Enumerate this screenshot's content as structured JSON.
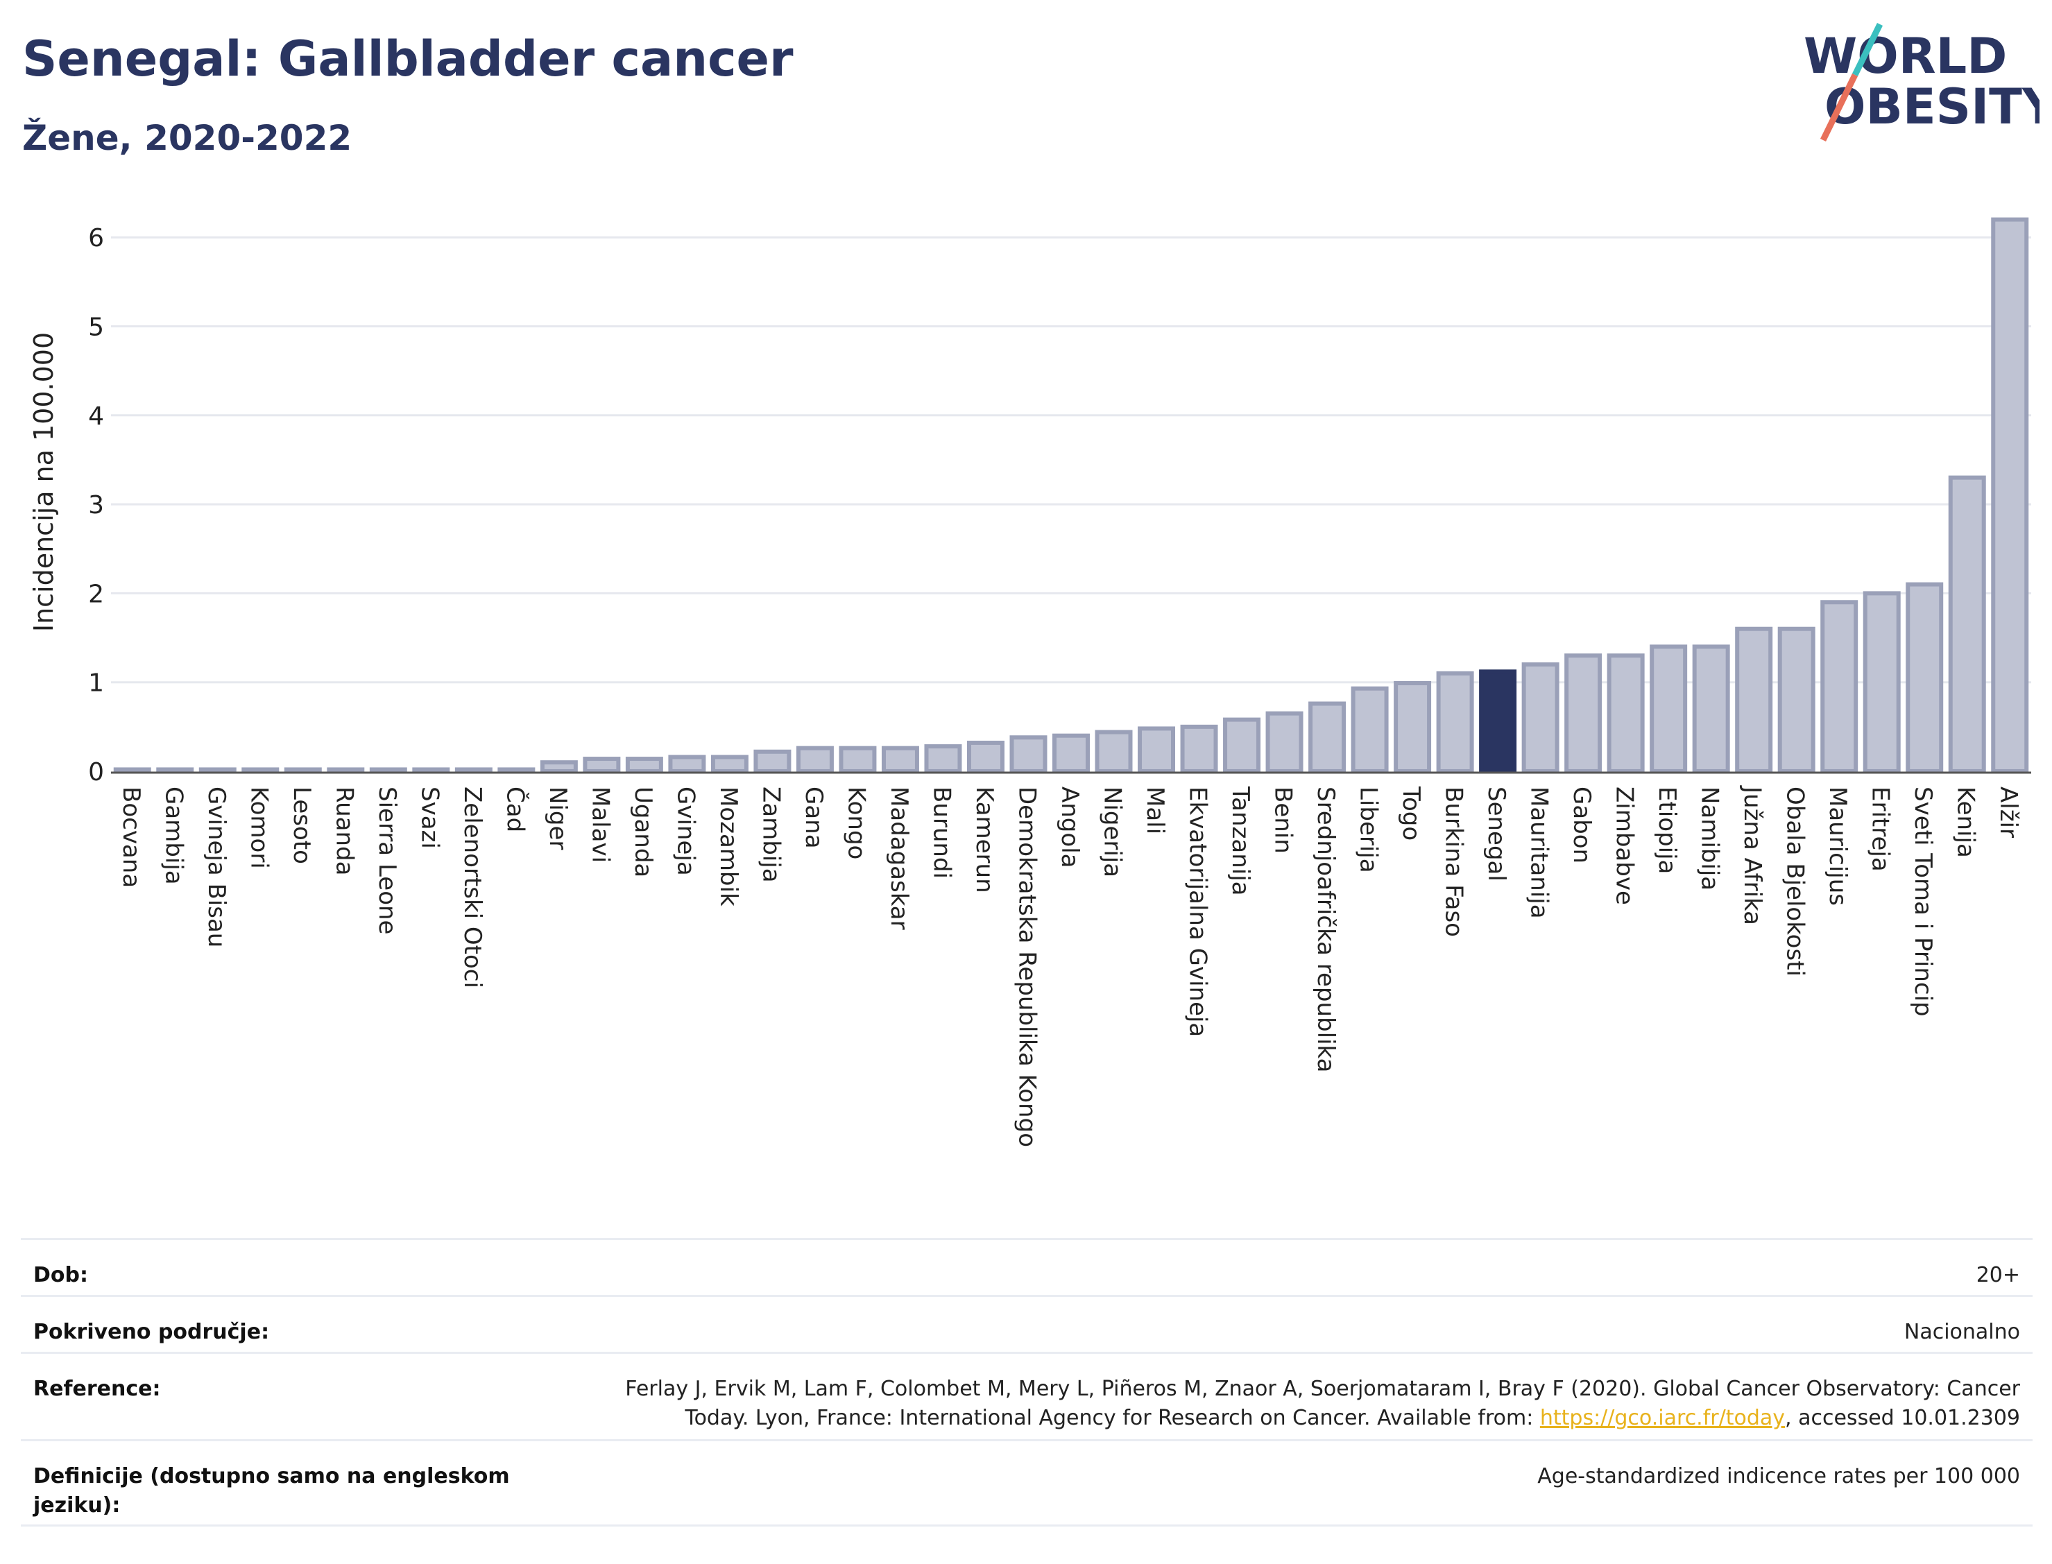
{
  "header": {
    "title": "Senegal: Gallbladder cancer",
    "subtitle": "Žene, 2020-2022"
  },
  "logo": {
    "line1": "WORLD",
    "line2": "OBESITY",
    "text_color": "#2a3561",
    "slash_top_color": "#3bbfbf",
    "slash_bottom_color": "#e8705a"
  },
  "chart_data": {
    "type": "bar",
    "ylabel": "Incidencija na 100.000",
    "ylim": [
      0,
      6.2
    ],
    "yticks": [
      0,
      1,
      2,
      3,
      4,
      5,
      6
    ],
    "grid": true,
    "highlight": "Senegal",
    "colors": {
      "bar_fill": "#bfc3d3",
      "bar_stroke": "#9aa0b8",
      "highlight": "#2a3561",
      "grid": "#e6e8ee"
    },
    "categories": [
      "Bocvana",
      "Gambija",
      "Gvineja Bisau",
      "Komori",
      "Lesoto",
      "Ruanda",
      "Sierra Leone",
      "Svazi",
      "Zelenortski Otoci",
      "Čad",
      "Niger",
      "Malavi",
      "Uganda",
      "Gvineja",
      "Mozambik",
      "Zambija",
      "Gana",
      "Kongo",
      "Madagaskar",
      "Burundi",
      "Kamerun",
      "Demokratska Republika Kongo",
      "Angola",
      "Nigerija",
      "Mali",
      "Ekvatorijalna Gvineja",
      "Tanzanija",
      "Benin",
      "Srednjoafrička republika",
      "Liberija",
      "Togo",
      "Burkina Faso",
      "Senegal",
      "Mauritanija",
      "Gabon",
      "Zimbabve",
      "Etiopija",
      "Namibija",
      "Južna Afrika",
      "Obala Bjelokosti",
      "Mauricijus",
      "Eritreja",
      "Sveti Toma i Princip",
      "Kenija",
      "Alžir"
    ],
    "values": [
      0.02,
      0.02,
      0.02,
      0.02,
      0.02,
      0.02,
      0.02,
      0.02,
      0.02,
      0.02,
      0.1,
      0.14,
      0.14,
      0.16,
      0.16,
      0.22,
      0.26,
      0.26,
      0.26,
      0.28,
      0.32,
      0.38,
      0.4,
      0.44,
      0.48,
      0.5,
      0.58,
      0.65,
      0.76,
      0.93,
      0.99,
      1.1,
      1.12,
      1.2,
      1.3,
      1.3,
      1.4,
      1.4,
      1.6,
      1.6,
      1.9,
      2.0,
      2.1,
      3.3,
      6.2
    ]
  },
  "meta": {
    "rows": [
      {
        "label": "Dob:",
        "value": "20+"
      },
      {
        "label": "Pokriveno područje:",
        "value": "Nacionalno"
      },
      {
        "label": "Reference:",
        "value_pre": "Ferlay J, Ervik M, Lam F, Colombet M, Mery L, Piñeros M, Znaor A, Soerjomataram I, Bray F (2020). Global Cancer Observatory: Cancer Today. Lyon, France: International Agency for Research on Cancer. Available from: ",
        "link": "https://gco.iarc.fr/today",
        "value_post": ", accessed 10.01.2309"
      },
      {
        "label": "Definicije (dostupno samo na engleskom jeziku):",
        "value": "Age-standardized indicence rates per 100 000"
      }
    ]
  }
}
